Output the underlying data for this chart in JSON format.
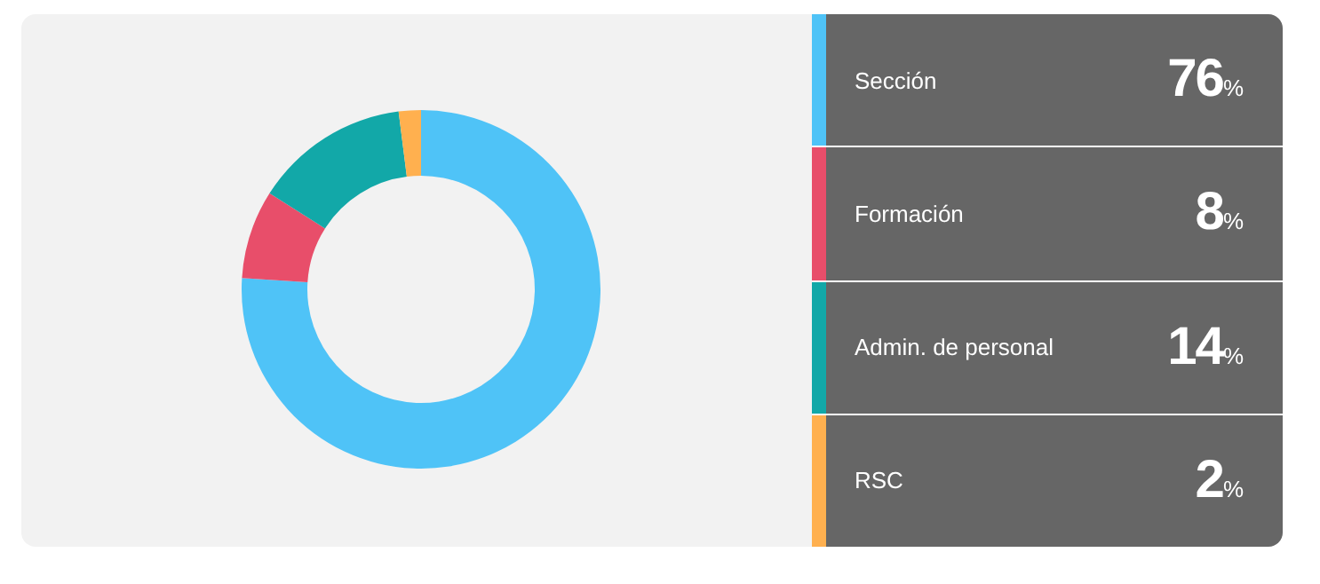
{
  "chart_data": {
    "type": "donut",
    "categories": [
      "Sección",
      "Formación",
      "Admin. de personal",
      "RSC"
    ],
    "values": [
      76,
      8,
      14,
      2
    ],
    "colors": [
      "#4fc3f7",
      "#e84e6a",
      "#12a8a8",
      "#ffb04f"
    ],
    "value_labels": [
      "76%",
      "8%",
      "14%",
      "2%"
    ],
    "legend": "right"
  }
}
